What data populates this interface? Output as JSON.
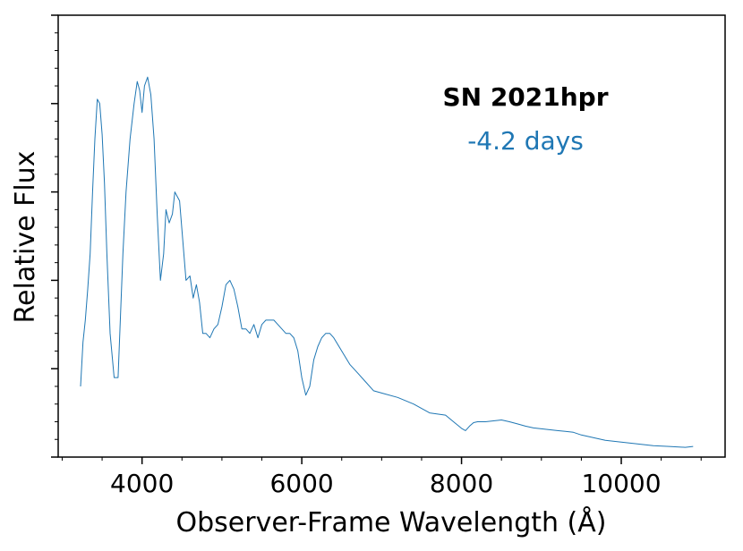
{
  "colors": {
    "spectrum": "#1f77b4",
    "axes": "#000000",
    "background": "#ffffff"
  },
  "chart_data": {
    "type": "line",
    "title": "",
    "xlabel": "Observer-Frame Wavelength (Å)",
    "ylabel": "Relative Flux",
    "xlim": [
      2950,
      11300
    ],
    "ylim": [
      0,
      1
    ],
    "x_major_ticks": [
      4000,
      6000,
      8000,
      10000
    ],
    "x_tick_labels": [
      "4000",
      "6000",
      "8000",
      "10000"
    ],
    "y_tick_labels_visible": false,
    "grid": false,
    "annotations": {
      "object": "SN 2021hpr",
      "epoch": "-4.2 days"
    },
    "series": [
      {
        "name": "SN 2021hpr spectrum",
        "x": [
          3230,
          3260,
          3290,
          3320,
          3350,
          3380,
          3410,
          3440,
          3470,
          3500,
          3530,
          3560,
          3600,
          3650,
          3700,
          3730,
          3760,
          3800,
          3850,
          3900,
          3940,
          3970,
          4000,
          4030,
          4070,
          4110,
          4150,
          4190,
          4230,
          4270,
          4300,
          4340,
          4380,
          4410,
          4440,
          4470,
          4510,
          4550,
          4600,
          4640,
          4680,
          4720,
          4760,
          4800,
          4850,
          4900,
          4950,
          5000,
          5050,
          5100,
          5150,
          5200,
          5250,
          5300,
          5350,
          5400,
          5450,
          5500,
          5550,
          5600,
          5650,
          5700,
          5750,
          5800,
          5850,
          5900,
          5950,
          6000,
          6050,
          6100,
          6150,
          6200,
          6250,
          6300,
          6350,
          6400,
          6500,
          6600,
          6700,
          6800,
          6900,
          7000,
          7200,
          7400,
          7600,
          7800,
          7900,
          8000,
          8050,
          8100,
          8150,
          8200,
          8300,
          8400,
          8500,
          8600,
          8700,
          8800,
          8900,
          9000,
          9100,
          9200,
          9300,
          9400,
          9500,
          9600,
          9700,
          9800,
          9900,
          10000,
          10200,
          10400,
          10600,
          10800,
          10900
        ],
        "y": [
          0.16,
          0.26,
          0.31,
          0.38,
          0.46,
          0.6,
          0.72,
          0.81,
          0.8,
          0.73,
          0.62,
          0.46,
          0.28,
          0.18,
          0.18,
          0.32,
          0.46,
          0.6,
          0.72,
          0.8,
          0.85,
          0.83,
          0.78,
          0.84,
          0.86,
          0.82,
          0.72,
          0.55,
          0.4,
          0.46,
          0.56,
          0.53,
          0.55,
          0.6,
          0.59,
          0.58,
          0.49,
          0.4,
          0.41,
          0.36,
          0.39,
          0.35,
          0.28,
          0.28,
          0.27,
          0.29,
          0.3,
          0.34,
          0.39,
          0.4,
          0.38,
          0.34,
          0.29,
          0.29,
          0.28,
          0.3,
          0.27,
          0.3,
          0.31,
          0.31,
          0.31,
          0.3,
          0.29,
          0.28,
          0.28,
          0.27,
          0.24,
          0.18,
          0.14,
          0.16,
          0.22,
          0.25,
          0.27,
          0.28,
          0.28,
          0.27,
          0.24,
          0.21,
          0.19,
          0.17,
          0.15,
          0.145,
          0.135,
          0.12,
          0.1,
          0.095,
          0.08,
          0.065,
          0.06,
          0.07,
          0.078,
          0.08,
          0.08,
          0.082,
          0.084,
          0.08,
          0.075,
          0.07,
          0.066,
          0.064,
          0.062,
          0.06,
          0.058,
          0.056,
          0.05,
          0.046,
          0.042,
          0.038,
          0.036,
          0.034,
          0.03,
          0.026,
          0.024,
          0.022,
          0.024
        ]
      }
    ]
  }
}
